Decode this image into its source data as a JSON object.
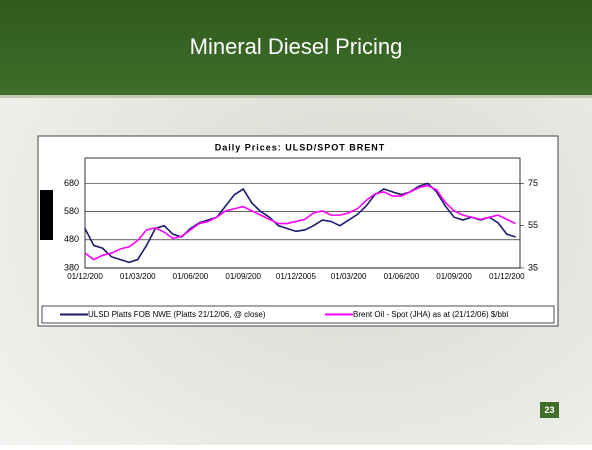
{
  "slide_title": "Mineral Diesel Pricing",
  "page_number": "23",
  "chart_data": {
    "type": "line",
    "title": "Daily Prices: ULSD/SPOT BRENT",
    "categories": [
      "01/12/200",
      null,
      null,
      null,
      null,
      null,
      "01/03/200",
      null,
      null,
      null,
      null,
      null,
      "01/06/200",
      null,
      null,
      null,
      null,
      null,
      "01/09/200",
      null,
      null,
      null,
      null,
      null,
      "01/12/2005",
      null,
      null,
      null,
      null,
      null,
      "01/03/200",
      null,
      null,
      null,
      null,
      null,
      "01/06/200",
      null,
      null,
      null,
      null,
      null,
      "01/09/200",
      null,
      null,
      null,
      null,
      null,
      "01/12/200",
      null
    ],
    "series": [
      {
        "name": "ULSD Platts FOB NWE (Platts 21/12/06, @ close)",
        "color": "#1a1a6e",
        "values": [
          520,
          460,
          450,
          420,
          410,
          400,
          410,
          460,
          520,
          530,
          500,
          490,
          520,
          540,
          550,
          560,
          600,
          640,
          660,
          610,
          580,
          560,
          530,
          520,
          510,
          515,
          530,
          550,
          545,
          530,
          550,
          570,
          600,
          640,
          660,
          650,
          640,
          650,
          670,
          680,
          650,
          600,
          560,
          550,
          560,
          550,
          560,
          540,
          500,
          490
        ]
      },
      {
        "name": "Brent Oil - Spot (JHA) as at (21/12/06) $/bbl",
        "color": "#ff00ff",
        "axis": "y2",
        "values": [
          42,
          39,
          41,
          42,
          44,
          45,
          48,
          53,
          54,
          52,
          49,
          50,
          53,
          56,
          57,
          59,
          62,
          63,
          64,
          62,
          60,
          58,
          56,
          56,
          57,
          58,
          61,
          62,
          60,
          60,
          61,
          63,
          67,
          70,
          71,
          69,
          69,
          71,
          73,
          74,
          72,
          66,
          62,
          60,
          59,
          58,
          59,
          60,
          58,
          56
        ]
      }
    ],
    "ylim": [
      380,
      770
    ],
    "yticks": [
      380,
      480,
      580,
      680
    ],
    "y2lim": [
      35,
      87
    ],
    "y2ticks": [
      35,
      55,
      75
    ],
    "grid": true
  }
}
